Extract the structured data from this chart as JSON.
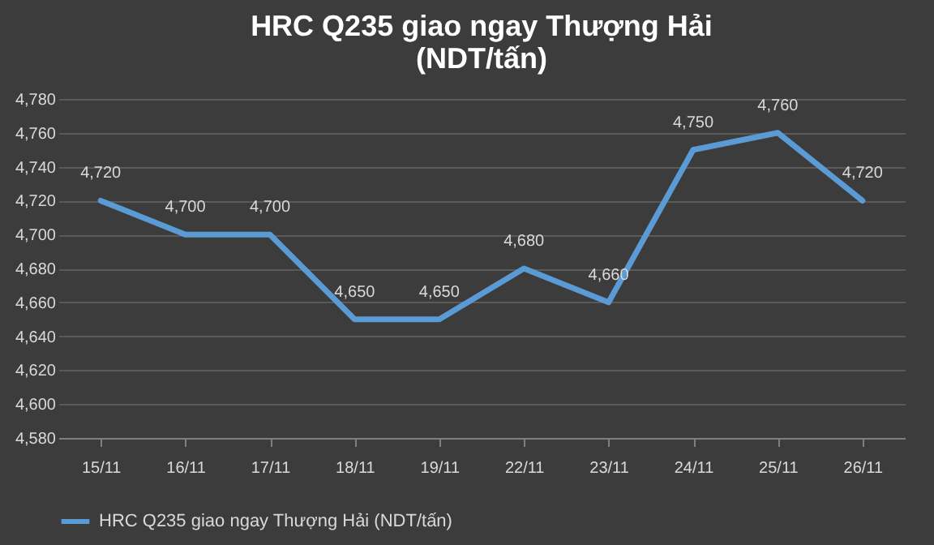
{
  "chart_data": {
    "type": "line",
    "title": "HRC Q235 giao ngay Thượng Hải\n(NDT/tấn)",
    "categories": [
      "15/11",
      "16/11",
      "17/11",
      "18/11",
      "19/11",
      "22/11",
      "23/11",
      "24/11",
      "25/11",
      "26/11"
    ],
    "series": [
      {
        "name": "HRC Q235 giao ngay Thượng Hải (NDT/tấn)",
        "color": "#5b9bd5",
        "values": [
          4720,
          4700,
          4700,
          4650,
          4650,
          4680,
          4660,
          4750,
          4760,
          4720
        ],
        "value_labels": [
          "4,720",
          "4,700",
          "4,700",
          "4,650",
          "4,650",
          "4,680",
          "4,660",
          "4,750",
          "4,760",
          "4,720"
        ]
      }
    ],
    "ylim": [
      4580,
      4780
    ],
    "yticks": [
      {
        "value": 4580,
        "label": "4,580"
      },
      {
        "value": 4600,
        "label": "4,600"
      },
      {
        "value": 4620,
        "label": "4,620"
      },
      {
        "value": 4640,
        "label": "4,640"
      },
      {
        "value": 4660,
        "label": "4,660"
      },
      {
        "value": 4680,
        "label": "4,680"
      },
      {
        "value": 4700,
        "label": "4,700"
      },
      {
        "value": 4720,
        "label": "4,720"
      },
      {
        "value": 4740,
        "label": "4,740"
      },
      {
        "value": 4760,
        "label": "4,760"
      },
      {
        "value": 4780,
        "label": "4,780"
      }
    ],
    "grid": "y",
    "legend": "bottom",
    "marker": "none",
    "line_style": "solid"
  }
}
